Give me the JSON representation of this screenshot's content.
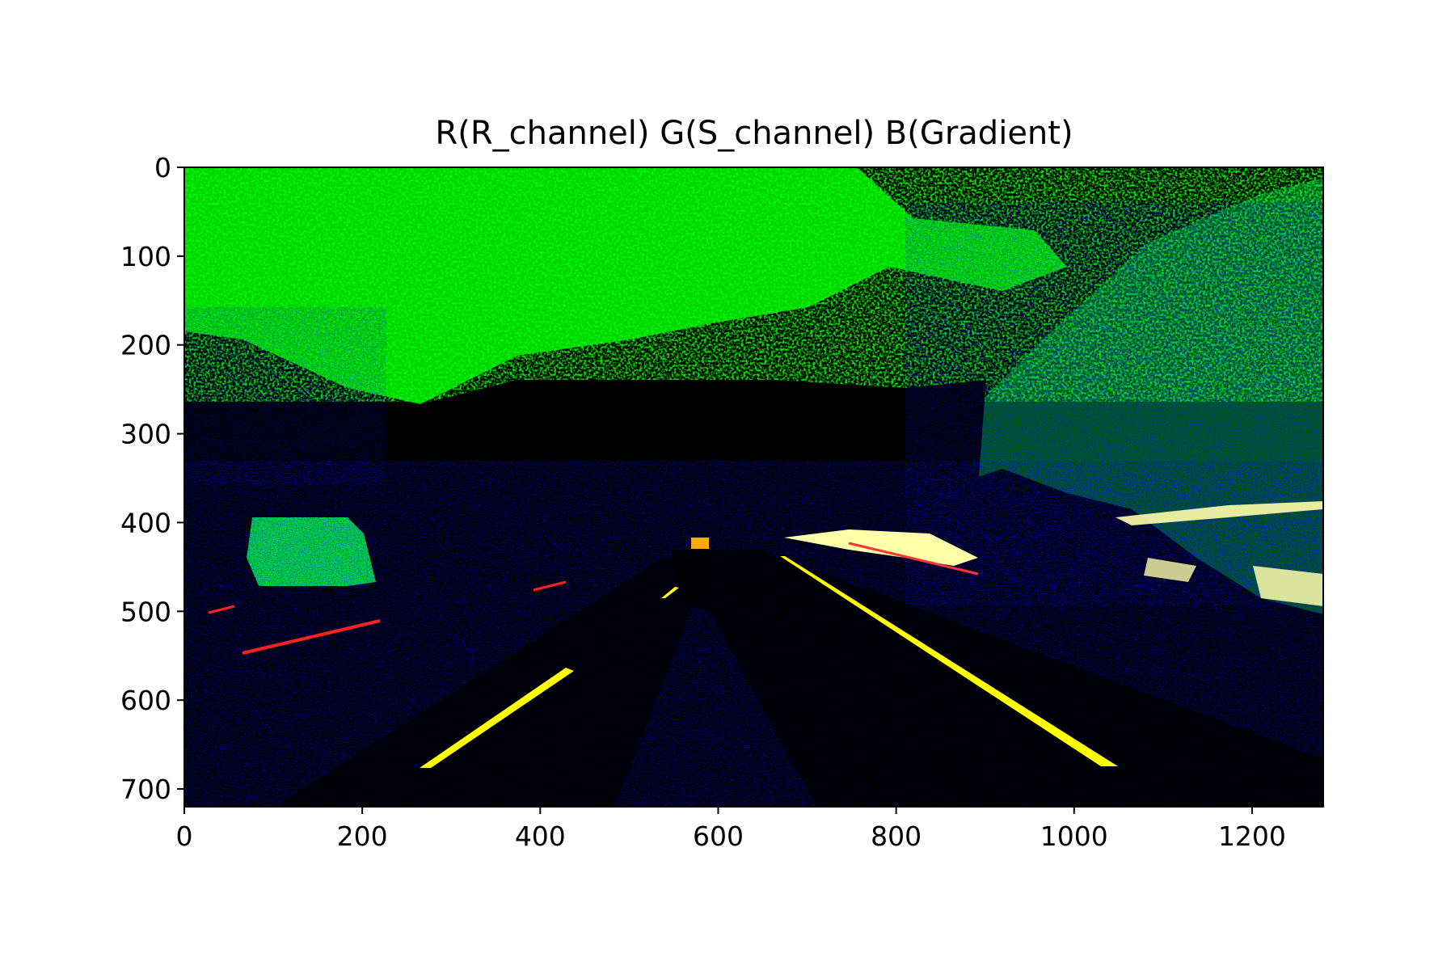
{
  "chart_data": {
    "type": "image",
    "title": "R(R_channel) G(S_channel) B(Gradient)",
    "xlabel": "",
    "ylabel": "",
    "xlim": [
      0,
      1280
    ],
    "ylim": [
      720,
      0
    ],
    "xticks": [
      0,
      200,
      400,
      600,
      800,
      1000,
      1200
    ],
    "yticks": [
      0,
      100,
      200,
      300,
      400,
      500,
      600,
      700
    ],
    "xtick_labels": [
      "0",
      "200",
      "400",
      "600",
      "800",
      "1000",
      "1200"
    ],
    "ytick_labels": [
      "0",
      "100",
      "200",
      "300",
      "400",
      "500",
      "600",
      "700"
    ],
    "grid": false,
    "legend": "none",
    "colors": {
      "background": "#000000",
      "s_channel": "#00ff00",
      "gradient": "#0000cc",
      "r_channel": "#ff0000",
      "lane_line": "#ffff00",
      "combined": "#ffffcc"
    }
  }
}
